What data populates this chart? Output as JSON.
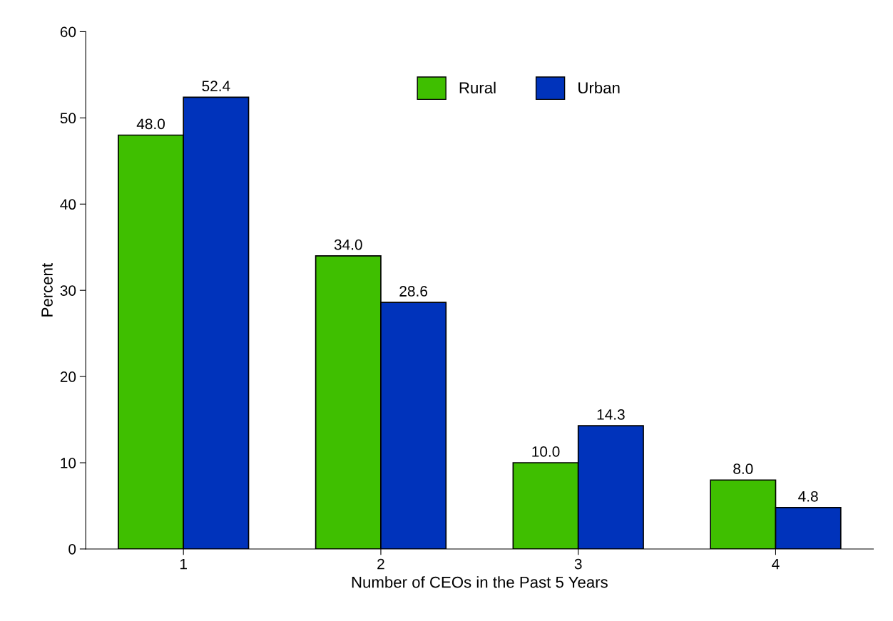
{
  "chart_data": {
    "type": "bar",
    "xlabel": "Number of CEOs in the Past 5 Years",
    "ylabel": "Percent",
    "categories": [
      "1",
      "2",
      "3",
      "4"
    ],
    "series": [
      {
        "name": "Rural",
        "color": "#3fbf00",
        "values": [
          48.0,
          34.0,
          10.0,
          8.0
        ],
        "value_labels": [
          "48.0",
          "34.0",
          "10.0",
          "8.0"
        ]
      },
      {
        "name": "Urban",
        "color": "#0033bb",
        "values": [
          52.4,
          28.6,
          14.3,
          4.8
        ],
        "value_labels": [
          "52.4",
          "28.6",
          "14.3",
          "4.8"
        ]
      }
    ],
    "ylim": [
      0,
      60
    ],
    "yticks": [
      0,
      10,
      20,
      30,
      40,
      50,
      60
    ],
    "legend": "top",
    "grid": false
  }
}
